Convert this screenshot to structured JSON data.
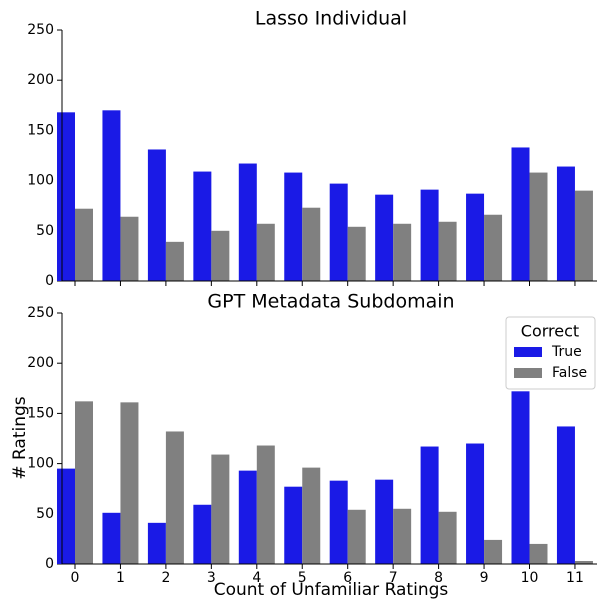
{
  "chart_data": [
    {
      "type": "bar",
      "title": "Lasso Individual",
      "categories": [
        null,
        null,
        null,
        null,
        null,
        null,
        null,
        null,
        null,
        null,
        null,
        null
      ],
      "series": [
        {
          "color": "#1a1ae6",
          "values": [
            168,
            170,
            131,
            109,
            117,
            108,
            97,
            86,
            91,
            87,
            133,
            114
          ]
        },
        {
          "color": "#808080",
          "values": [
            72,
            64,
            39,
            50,
            57,
            73,
            54,
            57,
            59,
            66,
            108,
            90
          ]
        }
      ],
      "ylim": [
        0,
        250
      ],
      "yticks": [
        0,
        50,
        100,
        150,
        200,
        250
      ]
    },
    {
      "type": "bar",
      "title": "GPT Metadata Subdomain",
      "xlabel": "Count of Unfamiliar Ratings",
      "ylabel": "# Ratings",
      "categories": [
        "0",
        "1",
        "2",
        "3",
        "4",
        "5",
        "6",
        "7",
        "8",
        "9",
        "10",
        "11"
      ],
      "legend_title": "Correct",
      "legend": "upper right",
      "series": [
        {
          "name": "True",
          "color": "#1a1ae6",
          "values": [
            95,
            51,
            41,
            59,
            93,
            77,
            83,
            84,
            117,
            120,
            172,
            137
          ]
        },
        {
          "name": "False",
          "color": "#808080",
          "values": [
            162,
            161,
            132,
            109,
            118,
            96,
            54,
            55,
            52,
            24,
            20,
            3
          ]
        }
      ],
      "ylim": [
        0,
        250
      ],
      "yticks": [
        0,
        50,
        100,
        150,
        200,
        250
      ]
    }
  ]
}
